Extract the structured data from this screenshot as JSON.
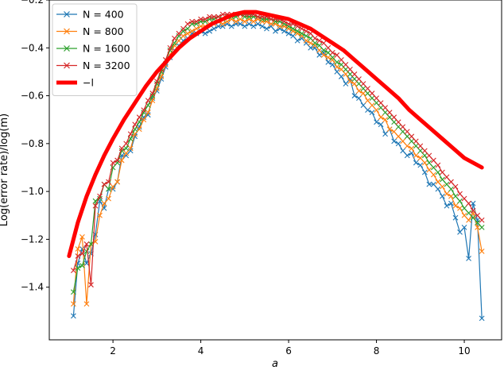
{
  "chart_data": {
    "type": "line",
    "title": "",
    "xlabel": "a",
    "ylabel": "Log(error rate)/log(m)",
    "xlim": [
      0.55,
      10.85
    ],
    "ylim": [
      -1.62,
      -0.2
    ],
    "xticks": [
      2,
      4,
      6,
      8,
      10
    ],
    "yticks": [
      -1.4,
      -1.2,
      -1.0,
      -0.8,
      -0.6,
      -0.4,
      -0.2
    ],
    "xtick_labels": [
      "2",
      "4",
      "6",
      "8",
      "10"
    ],
    "ytick_labels": [
      "−1.4",
      "−1.2",
      "−1.0",
      "−0.8",
      "−0.6",
      "−0.4",
      "−0.2"
    ],
    "grid": false,
    "legend": "top-left",
    "x": [
      1.1,
      1.2,
      1.3,
      1.4,
      1.5,
      1.6,
      1.7,
      1.8,
      1.9,
      2.0,
      2.1,
      2.2,
      2.3,
      2.4,
      2.5,
      2.6,
      2.7,
      2.8,
      2.9,
      3.0,
      3.1,
      3.2,
      3.3,
      3.4,
      3.5,
      3.6,
      3.7,
      3.8,
      3.9,
      4.0,
      4.1,
      4.2,
      4.3,
      4.4,
      4.5,
      4.6,
      4.7,
      4.8,
      4.9,
      5.0,
      5.1,
      5.2,
      5.3,
      5.4,
      5.5,
      5.6,
      5.7,
      5.8,
      5.9,
      6.0,
      6.1,
      6.2,
      6.3,
      6.4,
      6.5,
      6.6,
      6.7,
      6.8,
      6.9,
      7.0,
      7.1,
      7.2,
      7.3,
      7.4,
      7.5,
      7.6,
      7.7,
      7.8,
      7.9,
      8.0,
      8.1,
      8.2,
      8.3,
      8.4,
      8.5,
      8.6,
      8.7,
      8.8,
      8.9,
      9.0,
      9.1,
      9.2,
      9.3,
      9.4,
      9.5,
      9.6,
      9.7,
      9.8,
      9.9,
      10.0,
      10.1,
      10.2,
      10.3,
      10.4
    ],
    "series": [
      {
        "name": "N = 400",
        "color": "#1f77b4",
        "marker": "x",
        "values": [
          -1.52,
          -1.3,
          -1.24,
          -1.3,
          -1.26,
          -1.18,
          -1.04,
          -1.07,
          -0.99,
          -0.99,
          -0.96,
          -0.85,
          -0.85,
          -0.83,
          -0.77,
          -0.73,
          -0.69,
          -0.68,
          -0.61,
          -0.58,
          -0.53,
          -0.48,
          -0.44,
          -0.41,
          -0.39,
          -0.37,
          -0.36,
          -0.34,
          -0.34,
          -0.33,
          -0.34,
          -0.33,
          -0.32,
          -0.31,
          -0.31,
          -0.3,
          -0.31,
          -0.3,
          -0.3,
          -0.31,
          -0.3,
          -0.31,
          -0.3,
          -0.31,
          -0.32,
          -0.31,
          -0.33,
          -0.32,
          -0.33,
          -0.34,
          -0.35,
          -0.37,
          -0.36,
          -0.38,
          -0.4,
          -0.4,
          -0.43,
          -0.42,
          -0.46,
          -0.47,
          -0.5,
          -0.52,
          -0.55,
          -0.53,
          -0.6,
          -0.61,
          -0.64,
          -0.66,
          -0.67,
          -0.71,
          -0.72,
          -0.76,
          -0.74,
          -0.79,
          -0.8,
          -0.83,
          -0.85,
          -0.84,
          -0.88,
          -0.89,
          -0.92,
          -0.97,
          -0.97,
          -0.99,
          -1.02,
          -1.06,
          -1.05,
          -1.11,
          -1.17,
          -1.15,
          -1.28,
          -1.05,
          -1.12,
          -1.53
        ]
      },
      {
        "name": "N = 800",
        "color": "#ff7f0e",
        "marker": "x",
        "values": [
          -1.47,
          -1.24,
          -1.19,
          -1.47,
          -1.22,
          -1.21,
          -1.1,
          -1.05,
          -1.03,
          -0.98,
          -0.96,
          -0.87,
          -0.84,
          -0.82,
          -0.76,
          -0.74,
          -0.7,
          -0.67,
          -0.62,
          -0.57,
          -0.52,
          -0.47,
          -0.43,
          -0.39,
          -0.37,
          -0.35,
          -0.34,
          -0.33,
          -0.32,
          -0.31,
          -0.31,
          -0.3,
          -0.3,
          -0.29,
          -0.3,
          -0.29,
          -0.28,
          -0.29,
          -0.28,
          -0.29,
          -0.28,
          -0.29,
          -0.28,
          -0.29,
          -0.29,
          -0.3,
          -0.3,
          -0.31,
          -0.31,
          -0.32,
          -0.33,
          -0.34,
          -0.35,
          -0.37,
          -0.38,
          -0.39,
          -0.41,
          -0.43,
          -0.44,
          -0.45,
          -0.48,
          -0.49,
          -0.51,
          -0.54,
          -0.55,
          -0.58,
          -0.59,
          -0.62,
          -0.64,
          -0.66,
          -0.69,
          -0.7,
          -0.74,
          -0.75,
          -0.77,
          -0.79,
          -0.81,
          -0.82,
          -0.85,
          -0.86,
          -0.88,
          -0.91,
          -0.93,
          -0.96,
          -0.98,
          -1.01,
          -1.02,
          -1.06,
          -1.07,
          -1.1,
          -1.12,
          -1.09,
          -1.15,
          -1.25
        ]
      },
      {
        "name": "N = 1600",
        "color": "#2ca02c",
        "marker": "x",
        "values": [
          -1.42,
          -1.32,
          -1.31,
          -1.25,
          -1.22,
          -1.04,
          -1.03,
          -0.97,
          -0.99,
          -0.9,
          -0.88,
          -0.83,
          -0.82,
          -0.78,
          -0.74,
          -0.71,
          -0.67,
          -0.64,
          -0.6,
          -0.55,
          -0.5,
          -0.45,
          -0.41,
          -0.38,
          -0.35,
          -0.33,
          -0.32,
          -0.3,
          -0.3,
          -0.29,
          -0.29,
          -0.28,
          -0.28,
          -0.27,
          -0.28,
          -0.27,
          -0.27,
          -0.27,
          -0.26,
          -0.27,
          -0.27,
          -0.27,
          -0.27,
          -0.28,
          -0.28,
          -0.28,
          -0.29,
          -0.29,
          -0.3,
          -0.31,
          -0.32,
          -0.33,
          -0.34,
          -0.35,
          -0.36,
          -0.38,
          -0.39,
          -0.41,
          -0.42,
          -0.44,
          -0.46,
          -0.47,
          -0.49,
          -0.51,
          -0.53,
          -0.55,
          -0.57,
          -0.59,
          -0.61,
          -0.63,
          -0.65,
          -0.67,
          -0.69,
          -0.71,
          -0.73,
          -0.75,
          -0.77,
          -0.79,
          -0.81,
          -0.83,
          -0.85,
          -0.88,
          -0.9,
          -0.92,
          -0.95,
          -0.97,
          -0.99,
          -1.02,
          -1.04,
          -1.07,
          -1.09,
          -1.11,
          -1.13,
          -1.15
        ]
      },
      {
        "name": "N = 3200",
        "color": "#d62728",
        "marker": "x",
        "values": [
          -1.33,
          -1.27,
          -1.26,
          -1.22,
          -1.39,
          -1.06,
          -1.02,
          -0.97,
          -0.96,
          -0.88,
          -0.87,
          -0.82,
          -0.8,
          -0.76,
          -0.72,
          -0.69,
          -0.66,
          -0.62,
          -0.59,
          -0.54,
          -0.49,
          -0.45,
          -0.4,
          -0.36,
          -0.34,
          -0.32,
          -0.3,
          -0.29,
          -0.29,
          -0.28,
          -0.28,
          -0.27,
          -0.27,
          -0.27,
          -0.26,
          -0.26,
          -0.26,
          -0.26,
          -0.26,
          -0.26,
          -0.26,
          -0.26,
          -0.27,
          -0.27,
          -0.27,
          -0.28,
          -0.28,
          -0.28,
          -0.29,
          -0.3,
          -0.3,
          -0.31,
          -0.32,
          -0.33,
          -0.34,
          -0.36,
          -0.37,
          -0.38,
          -0.4,
          -0.42,
          -0.43,
          -0.45,
          -0.47,
          -0.49,
          -0.51,
          -0.53,
          -0.55,
          -0.57,
          -0.59,
          -0.61,
          -0.63,
          -0.65,
          -0.67,
          -0.69,
          -0.71,
          -0.73,
          -0.75,
          -0.77,
          -0.79,
          -0.81,
          -0.83,
          -0.85,
          -0.87,
          -0.89,
          -0.92,
          -0.94,
          -0.96,
          -0.98,
          -1.01,
          -1.03,
          -1.05,
          -1.08,
          -1.1,
          -1.12
        ]
      },
      {
        "name": "−l",
        "color": "#ff0000",
        "marker": "none",
        "line_width": 5,
        "x": [
          1.0,
          1.2,
          1.4,
          1.6,
          1.8,
          2.0,
          2.25,
          2.5,
          2.75,
          3.0,
          3.25,
          3.5,
          3.75,
          4.0,
          4.25,
          4.5,
          4.75,
          5.0,
          5.25,
          5.5,
          5.75,
          6.0,
          6.25,
          6.5,
          6.75,
          7.0,
          7.25,
          7.5,
          7.75,
          8.0,
          8.25,
          8.5,
          8.75,
          9.0,
          9.25,
          9.5,
          9.75,
          10.0,
          10.2,
          10.4
        ],
        "values": [
          -1.27,
          -1.13,
          -1.02,
          -0.93,
          -0.85,
          -0.78,
          -0.7,
          -0.63,
          -0.56,
          -0.5,
          -0.45,
          -0.4,
          -0.36,
          -0.33,
          -0.3,
          -0.28,
          -0.26,
          -0.25,
          -0.25,
          -0.26,
          -0.27,
          -0.28,
          -0.3,
          -0.32,
          -0.35,
          -0.38,
          -0.41,
          -0.45,
          -0.49,
          -0.53,
          -0.57,
          -0.61,
          -0.66,
          -0.7,
          -0.74,
          -0.78,
          -0.82,
          -0.86,
          -0.88,
          -0.9
        ]
      }
    ]
  }
}
